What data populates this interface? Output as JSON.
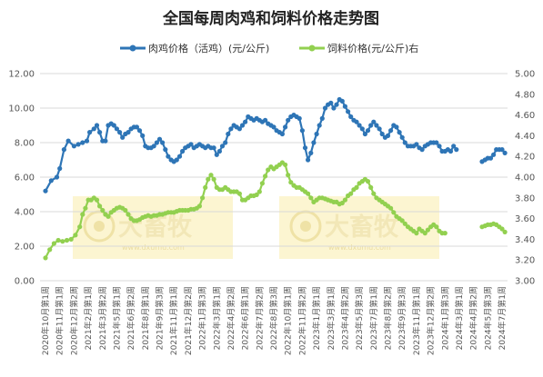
{
  "chart_data": {
    "type": "line",
    "title": "全国每周肉鸡和饲料价格走势图",
    "legend_position": "top",
    "grid": true,
    "watermark": {
      "text": "大畜牧",
      "subtext": "www.dxumu.com"
    },
    "y_left": {
      "min": 0,
      "max": 12,
      "ticks": [
        "0.00",
        "2.00",
        "4.00",
        "6.00",
        "8.00",
        "10.00",
        "12.00"
      ]
    },
    "y_right": {
      "min": 3.0,
      "max": 5.0,
      "ticks": [
        "3.00",
        "3.20",
        "3.40",
        "3.60",
        "3.80",
        "4.00",
        "4.20",
        "4.40",
        "4.60",
        "4.80",
        "5.00"
      ]
    },
    "x_labels": [
      "2020年10月第1周",
      "2020年11月第1周",
      "2020年12月第2周",
      "2021年2月第1周",
      "2021年3月第2周",
      "2021年5月第1周",
      "2021年6月第2周",
      "2021年8月第1周",
      "2021年9月第3周",
      "2021年11月第1周",
      "2021年12月第2周",
      "2022年1月第3周",
      "2022年3月第1周",
      "2022年4月第2周",
      "2022年6月第1周",
      "2022年7月第2周",
      "2022年8月第3周",
      "2022年10月第1周",
      "2022年11月第2周",
      "2023年1月第1周",
      "2023年3月第1周",
      "2023年4月第2周",
      "2023年5月第3周",
      "2023年7月第1周",
      "2023年8月第2周",
      "2023年9月第3周",
      "2023年11月第1周",
      "2023年12月第2周",
      "2024年1月第3周",
      "2024年3月第1周",
      "2024年4月第2周",
      "2024年5月第3周",
      "2024年7月第1周"
    ],
    "series": [
      {
        "name": "肉鸡价格（活鸡）(元/公斤)",
        "axis": "left",
        "color": "#2e75b6",
        "points": [
          [
            0,
            5.2
          ],
          [
            0.4,
            5.8
          ],
          [
            0.8,
            6.0
          ],
          [
            1.0,
            6.5
          ],
          [
            1.3,
            7.6
          ],
          [
            1.6,
            8.1
          ],
          [
            2.0,
            7.8
          ],
          [
            2.3,
            7.9
          ],
          [
            2.6,
            8.0
          ],
          [
            2.9,
            8.1
          ],
          [
            3.1,
            8.6
          ],
          [
            3.4,
            8.8
          ],
          [
            3.6,
            9.0
          ],
          [
            3.8,
            8.6
          ],
          [
            4.0,
            8.1
          ],
          [
            4.2,
            8.1
          ],
          [
            4.4,
            9.0
          ],
          [
            4.6,
            9.1
          ],
          [
            4.8,
            9.0
          ],
          [
            5.0,
            8.8
          ],
          [
            5.2,
            8.6
          ],
          [
            5.4,
            8.3
          ],
          [
            5.6,
            8.5
          ],
          [
            5.8,
            8.6
          ],
          [
            6.0,
            8.8
          ],
          [
            6.2,
            8.9
          ],
          [
            6.4,
            8.9
          ],
          [
            6.6,
            8.7
          ],
          [
            6.8,
            8.4
          ],
          [
            7.0,
            7.8
          ],
          [
            7.2,
            7.7
          ],
          [
            7.4,
            7.7
          ],
          [
            7.6,
            7.8
          ],
          [
            7.8,
            8.0
          ],
          [
            8.0,
            8.2
          ],
          [
            8.2,
            8.0
          ],
          [
            8.4,
            7.6
          ],
          [
            8.6,
            7.2
          ],
          [
            8.8,
            7.0
          ],
          [
            9.0,
            6.9
          ],
          [
            9.2,
            7.0
          ],
          [
            9.4,
            7.2
          ],
          [
            9.6,
            7.5
          ],
          [
            9.8,
            7.7
          ],
          [
            10.0,
            7.8
          ],
          [
            10.2,
            7.9
          ],
          [
            10.4,
            7.7
          ],
          [
            10.6,
            7.8
          ],
          [
            10.8,
            7.9
          ],
          [
            11.0,
            7.8
          ],
          [
            11.2,
            7.7
          ],
          [
            11.4,
            7.8
          ],
          [
            11.6,
            7.7
          ],
          [
            11.8,
            7.7
          ],
          [
            12.0,
            7.3
          ],
          [
            12.2,
            7.5
          ],
          [
            12.4,
            7.8
          ],
          [
            12.6,
            8.0
          ],
          [
            12.8,
            8.5
          ],
          [
            13.0,
            8.8
          ],
          [
            13.2,
            9.0
          ],
          [
            13.4,
            8.9
          ],
          [
            13.6,
            8.8
          ],
          [
            13.8,
            9.0
          ],
          [
            14.0,
            9.2
          ],
          [
            14.2,
            9.5
          ],
          [
            14.4,
            9.4
          ],
          [
            14.6,
            9.3
          ],
          [
            14.8,
            9.4
          ],
          [
            15.0,
            9.3
          ],
          [
            15.2,
            9.2
          ],
          [
            15.4,
            9.3
          ],
          [
            15.6,
            9.1
          ],
          [
            15.8,
            9.0
          ],
          [
            16.0,
            8.9
          ],
          [
            16.2,
            8.7
          ],
          [
            16.4,
            8.6
          ],
          [
            16.6,
            8.5
          ],
          [
            16.8,
            8.9
          ],
          [
            17.0,
            9.3
          ],
          [
            17.2,
            9.5
          ],
          [
            17.4,
            9.6
          ],
          [
            17.6,
            9.5
          ],
          [
            17.8,
            9.4
          ],
          [
            18.0,
            8.7
          ],
          [
            18.2,
            7.7
          ],
          [
            18.4,
            7.0
          ],
          [
            18.6,
            7.4
          ],
          [
            18.8,
            8.0
          ],
          [
            19.0,
            8.5
          ],
          [
            19.2,
            9.0
          ],
          [
            19.4,
            9.4
          ],
          [
            19.6,
            10.0
          ],
          [
            19.8,
            10.2
          ],
          [
            20.0,
            10.3
          ],
          [
            20.2,
            10.0
          ],
          [
            20.4,
            10.2
          ],
          [
            20.6,
            10.5
          ],
          [
            20.8,
            10.4
          ],
          [
            21.0,
            10.1
          ],
          [
            21.2,
            9.8
          ],
          [
            21.4,
            9.5
          ],
          [
            21.6,
            9.3
          ],
          [
            21.8,
            9.2
          ],
          [
            22.0,
            9.0
          ],
          [
            22.2,
            8.8
          ],
          [
            22.4,
            8.5
          ],
          [
            22.6,
            8.7
          ],
          [
            22.8,
            9.0
          ],
          [
            23.0,
            9.2
          ],
          [
            23.2,
            9.0
          ],
          [
            23.4,
            8.8
          ],
          [
            23.6,
            8.5
          ],
          [
            23.8,
            8.3
          ],
          [
            24.0,
            8.4
          ],
          [
            24.2,
            8.7
          ],
          [
            24.4,
            9.0
          ],
          [
            24.6,
            8.9
          ],
          [
            24.8,
            8.6
          ],
          [
            25.0,
            8.3
          ],
          [
            25.2,
            8.0
          ],
          [
            25.4,
            7.8
          ],
          [
            25.6,
            7.8
          ],
          [
            25.8,
            7.8
          ],
          [
            26.0,
            7.9
          ],
          [
            26.2,
            7.7
          ],
          [
            26.4,
            7.6
          ],
          [
            26.6,
            7.8
          ],
          [
            26.8,
            7.9
          ],
          [
            27.0,
            8.0
          ],
          [
            27.2,
            8.0
          ],
          [
            27.4,
            8.0
          ],
          [
            27.6,
            7.8
          ],
          [
            27.8,
            7.5
          ],
          [
            28.0,
            7.5
          ],
          [
            28.2,
            7.6
          ],
          [
            28.4,
            7.5
          ],
          [
            28.6,
            7.8
          ],
          [
            28.8,
            7.6
          ]
        ],
        "segments_break_after": 143,
        "points_after_gap": [
          [
            30.6,
            6.9
          ],
          [
            30.8,
            7.0
          ],
          [
            31.0,
            7.1
          ],
          [
            31.2,
            7.1
          ],
          [
            31.4,
            7.3
          ],
          [
            31.6,
            7.6
          ],
          [
            31.8,
            7.6
          ],
          [
            32.0,
            7.6
          ],
          [
            32.2,
            7.4
          ]
        ]
      },
      {
        "name": "饲料价格(元/公斤)右",
        "axis": "right",
        "color": "#92d050",
        "points": [
          [
            0,
            3.22
          ],
          [
            0.3,
            3.3
          ],
          [
            0.6,
            3.36
          ],
          [
            0.9,
            3.39
          ],
          [
            1.2,
            3.38
          ],
          [
            1.5,
            3.39
          ],
          [
            1.8,
            3.4
          ],
          [
            2.1,
            3.44
          ],
          [
            2.4,
            3.52
          ],
          [
            2.6,
            3.64
          ],
          [
            2.8,
            3.7
          ],
          [
            3.0,
            3.78
          ],
          [
            3.2,
            3.78
          ],
          [
            3.4,
            3.8
          ],
          [
            3.6,
            3.78
          ],
          [
            3.8,
            3.72
          ],
          [
            4.0,
            3.68
          ],
          [
            4.2,
            3.64
          ],
          [
            4.4,
            3.62
          ],
          [
            4.6,
            3.66
          ],
          [
            4.8,
            3.68
          ],
          [
            5.0,
            3.7
          ],
          [
            5.2,
            3.71
          ],
          [
            5.4,
            3.7
          ],
          [
            5.6,
            3.68
          ],
          [
            5.8,
            3.64
          ],
          [
            6.0,
            3.6
          ],
          [
            6.2,
            3.58
          ],
          [
            6.4,
            3.58
          ],
          [
            6.6,
            3.59
          ],
          [
            6.8,
            3.61
          ],
          [
            7.0,
            3.62
          ],
          [
            7.2,
            3.63
          ],
          [
            7.4,
            3.62
          ],
          [
            7.6,
            3.63
          ],
          [
            7.8,
            3.63
          ],
          [
            8.0,
            3.64
          ],
          [
            8.2,
            3.64
          ],
          [
            8.4,
            3.65
          ],
          [
            8.6,
            3.66
          ],
          [
            8.8,
            3.66
          ],
          [
            9.0,
            3.66
          ],
          [
            9.2,
            3.67
          ],
          [
            9.4,
            3.68
          ],
          [
            9.6,
            3.68
          ],
          [
            9.8,
            3.68
          ],
          [
            10.0,
            3.68
          ],
          [
            10.2,
            3.69
          ],
          [
            10.4,
            3.69
          ],
          [
            10.6,
            3.7
          ],
          [
            10.8,
            3.72
          ],
          [
            11.0,
            3.8
          ],
          [
            11.2,
            3.9
          ],
          [
            11.4,
            3.98
          ],
          [
            11.6,
            4.02
          ],
          [
            11.8,
            3.98
          ],
          [
            12.0,
            3.9
          ],
          [
            12.2,
            3.88
          ],
          [
            12.4,
            3.88
          ],
          [
            12.6,
            3.9
          ],
          [
            12.8,
            3.88
          ],
          [
            13.0,
            3.86
          ],
          [
            13.2,
            3.86
          ],
          [
            13.4,
            3.86
          ],
          [
            13.6,
            3.84
          ],
          [
            13.8,
            3.78
          ],
          [
            14.0,
            3.78
          ],
          [
            14.2,
            3.8
          ],
          [
            14.4,
            3.82
          ],
          [
            14.6,
            3.82
          ],
          [
            14.8,
            3.83
          ],
          [
            15.0,
            3.86
          ],
          [
            15.2,
            3.94
          ],
          [
            15.4,
            4.01
          ],
          [
            15.6,
            4.07
          ],
          [
            15.8,
            4.1
          ],
          [
            16.0,
            4.08
          ],
          [
            16.2,
            4.1
          ],
          [
            16.4,
            4.12
          ],
          [
            16.6,
            4.14
          ],
          [
            16.8,
            4.12
          ],
          [
            17.0,
            4.02
          ],
          [
            17.2,
            3.95
          ],
          [
            17.4,
            3.92
          ],
          [
            17.6,
            3.9
          ],
          [
            17.8,
            3.9
          ],
          [
            18.0,
            3.88
          ],
          [
            18.2,
            3.86
          ],
          [
            18.4,
            3.84
          ],
          [
            18.6,
            3.8
          ],
          [
            18.8,
            3.76
          ],
          [
            19.0,
            3.78
          ],
          [
            19.2,
            3.8
          ],
          [
            19.4,
            3.8
          ],
          [
            19.6,
            3.79
          ],
          [
            19.8,
            3.78
          ],
          [
            20.0,
            3.77
          ],
          [
            20.2,
            3.76
          ],
          [
            20.4,
            3.76
          ],
          [
            20.6,
            3.74
          ],
          [
            20.8,
            3.75
          ],
          [
            21.0,
            3.78
          ],
          [
            21.2,
            3.82
          ],
          [
            21.4,
            3.84
          ],
          [
            21.6,
            3.88
          ],
          [
            21.8,
            3.9
          ],
          [
            22.0,
            3.94
          ],
          [
            22.2,
            3.96
          ],
          [
            22.4,
            3.98
          ],
          [
            22.6,
            3.96
          ],
          [
            22.8,
            3.9
          ],
          [
            23.0,
            3.84
          ],
          [
            23.2,
            3.8
          ],
          [
            23.4,
            3.78
          ],
          [
            23.6,
            3.76
          ],
          [
            23.8,
            3.74
          ],
          [
            24.0,
            3.72
          ],
          [
            24.2,
            3.7
          ],
          [
            24.4,
            3.66
          ],
          [
            24.6,
            3.62
          ],
          [
            24.8,
            3.6
          ],
          [
            25.0,
            3.58
          ],
          [
            25.2,
            3.55
          ],
          [
            25.4,
            3.52
          ],
          [
            25.6,
            3.5
          ],
          [
            25.8,
            3.48
          ],
          [
            26.0,
            3.46
          ],
          [
            26.2,
            3.5
          ],
          [
            26.4,
            3.48
          ],
          [
            26.6,
            3.46
          ],
          [
            26.8,
            3.49
          ],
          [
            27.0,
            3.52
          ],
          [
            27.2,
            3.54
          ],
          [
            27.4,
            3.52
          ],
          [
            27.6,
            3.48
          ],
          [
            27.8,
            3.46
          ],
          [
            28.0,
            3.46
          ]
        ],
        "points_after_gap": [
          [
            30.6,
            3.52
          ],
          [
            30.8,
            3.53
          ],
          [
            31.0,
            3.54
          ],
          [
            31.2,
            3.54
          ],
          [
            31.4,
            3.55
          ],
          [
            31.6,
            3.54
          ],
          [
            31.8,
            3.52
          ],
          [
            32.0,
            3.5
          ],
          [
            32.2,
            3.47
          ]
        ]
      }
    ]
  }
}
